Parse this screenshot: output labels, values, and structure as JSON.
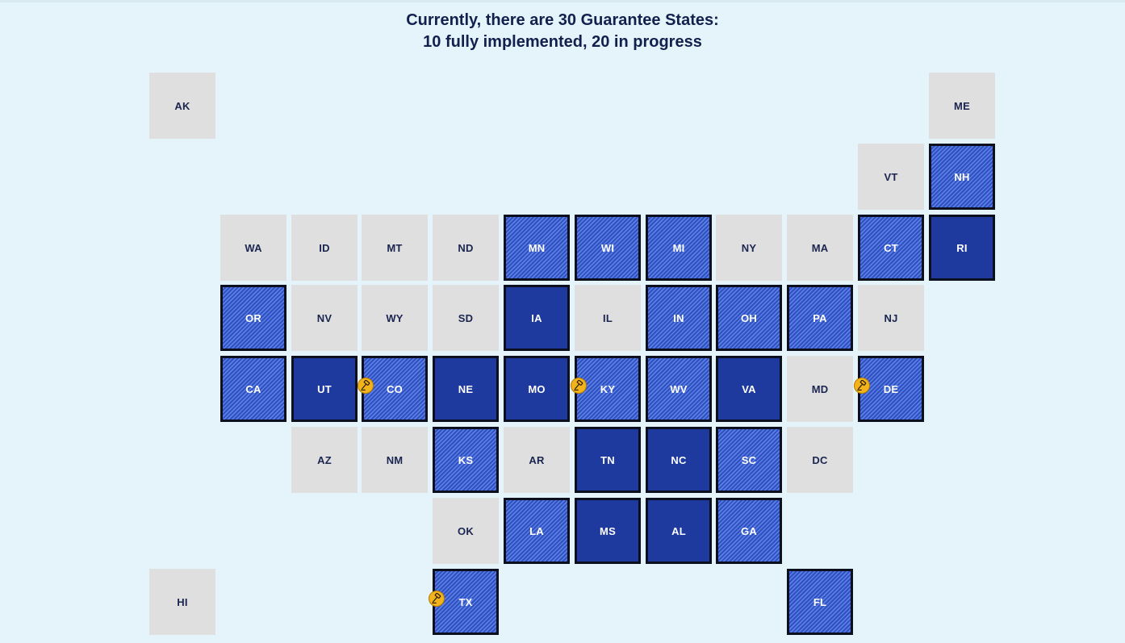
{
  "title": {
    "line1": "Currently, there are 30 Guarantee States:",
    "line2": "10 fully implemented, 20 in progress"
  },
  "legend_colors": {
    "none": "#dfdfdf",
    "full": "#1f3a9e",
    "progress": "#3a5fd0"
  },
  "states": [
    {
      "abbr": "AK",
      "status": "none",
      "col": 0,
      "row": 0
    },
    {
      "abbr": "ME",
      "status": "none",
      "col": 11,
      "row": 0
    },
    {
      "abbr": "VT",
      "status": "none",
      "col": 10,
      "row": 1
    },
    {
      "abbr": "NH",
      "status": "progress",
      "col": 11,
      "row": 1
    },
    {
      "abbr": "WA",
      "status": "none",
      "col": 1,
      "row": 2
    },
    {
      "abbr": "ID",
      "status": "none",
      "col": 2,
      "row": 2
    },
    {
      "abbr": "MT",
      "status": "none",
      "col": 3,
      "row": 2
    },
    {
      "abbr": "ND",
      "status": "none",
      "col": 4,
      "row": 2
    },
    {
      "abbr": "MN",
      "status": "progress",
      "col": 5,
      "row": 2
    },
    {
      "abbr": "WI",
      "status": "progress",
      "col": 6,
      "row": 2
    },
    {
      "abbr": "MI",
      "status": "progress",
      "col": 7,
      "row": 2
    },
    {
      "abbr": "NY",
      "status": "none",
      "col": 8,
      "row": 2
    },
    {
      "abbr": "MA",
      "status": "none",
      "col": 9,
      "row": 2
    },
    {
      "abbr": "CT",
      "status": "progress",
      "col": 10,
      "row": 2
    },
    {
      "abbr": "RI",
      "status": "full",
      "col": 11,
      "row": 2
    },
    {
      "abbr": "OR",
      "status": "progress",
      "col": 1,
      "row": 3
    },
    {
      "abbr": "NV",
      "status": "none",
      "col": 2,
      "row": 3
    },
    {
      "abbr": "WY",
      "status": "none",
      "col": 3,
      "row": 3
    },
    {
      "abbr": "SD",
      "status": "none",
      "col": 4,
      "row": 3
    },
    {
      "abbr": "IA",
      "status": "full",
      "col": 5,
      "row": 3
    },
    {
      "abbr": "IL",
      "status": "none",
      "col": 6,
      "row": 3
    },
    {
      "abbr": "IN",
      "status": "progress",
      "col": 7,
      "row": 3
    },
    {
      "abbr": "OH",
      "status": "progress",
      "col": 8,
      "row": 3
    },
    {
      "abbr": "PA",
      "status": "progress",
      "col": 9,
      "row": 3
    },
    {
      "abbr": "NJ",
      "status": "none",
      "col": 10,
      "row": 3
    },
    {
      "abbr": "CA",
      "status": "progress",
      "col": 1,
      "row": 4
    },
    {
      "abbr": "UT",
      "status": "full",
      "col": 2,
      "row": 4
    },
    {
      "abbr": "CO",
      "status": "progress",
      "col": 3,
      "row": 4,
      "gavel": true
    },
    {
      "abbr": "NE",
      "status": "full",
      "col": 4,
      "row": 4
    },
    {
      "abbr": "MO",
      "status": "full",
      "col": 5,
      "row": 4
    },
    {
      "abbr": "KY",
      "status": "progress",
      "col": 6,
      "row": 4,
      "gavel": true
    },
    {
      "abbr": "WV",
      "status": "progress",
      "col": 7,
      "row": 4
    },
    {
      "abbr": "VA",
      "status": "full",
      "col": 8,
      "row": 4
    },
    {
      "abbr": "MD",
      "status": "none",
      "col": 9,
      "row": 4
    },
    {
      "abbr": "DE",
      "status": "progress",
      "col": 10,
      "row": 4,
      "gavel": true
    },
    {
      "abbr": "AZ",
      "status": "none",
      "col": 2,
      "row": 5
    },
    {
      "abbr": "NM",
      "status": "none",
      "col": 3,
      "row": 5
    },
    {
      "abbr": "KS",
      "status": "progress",
      "col": 4,
      "row": 5
    },
    {
      "abbr": "AR",
      "status": "none",
      "col": 5,
      "row": 5
    },
    {
      "abbr": "TN",
      "status": "full",
      "col": 6,
      "row": 5
    },
    {
      "abbr": "NC",
      "status": "full",
      "col": 7,
      "row": 5
    },
    {
      "abbr": "SC",
      "status": "progress",
      "col": 8,
      "row": 5
    },
    {
      "abbr": "DC",
      "status": "none",
      "col": 9,
      "row": 5
    },
    {
      "abbr": "OK",
      "status": "none",
      "col": 4,
      "row": 6
    },
    {
      "abbr": "LA",
      "status": "progress",
      "col": 5,
      "row": 6
    },
    {
      "abbr": "MS",
      "status": "full",
      "col": 6,
      "row": 6
    },
    {
      "abbr": "AL",
      "status": "full",
      "col": 7,
      "row": 6
    },
    {
      "abbr": "GA",
      "status": "progress",
      "col": 8,
      "row": 6
    },
    {
      "abbr": "HI",
      "status": "none",
      "col": 0,
      "row": 7
    },
    {
      "abbr": "TX",
      "status": "progress",
      "col": 4,
      "row": 7,
      "gavel": true
    },
    {
      "abbr": "FL",
      "status": "progress",
      "col": 9,
      "row": 7
    }
  ]
}
